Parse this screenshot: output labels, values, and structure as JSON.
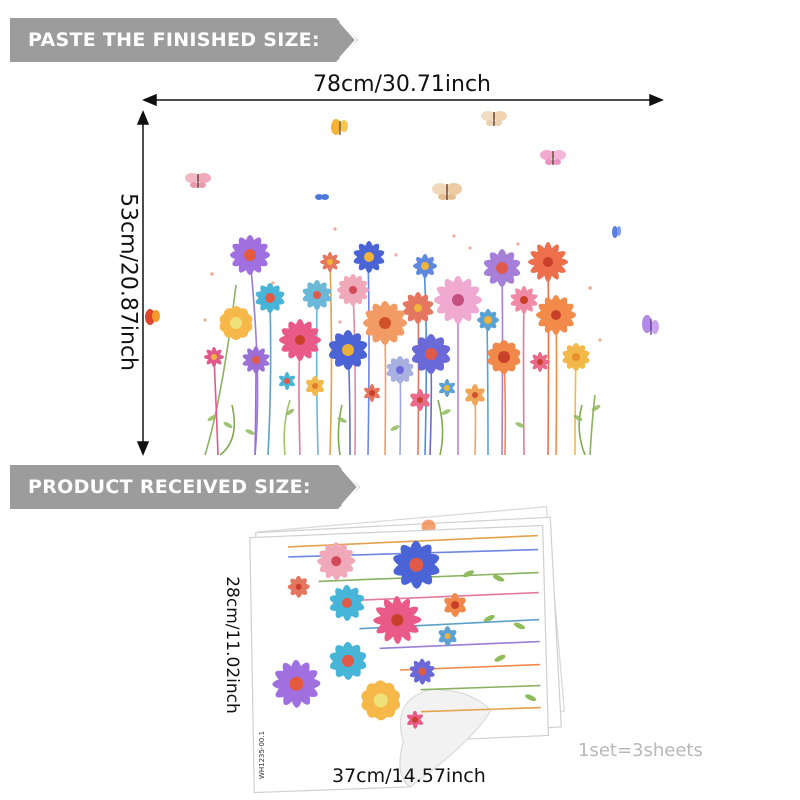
{
  "banners": {
    "finished_label": "PASTE THE FINISHED SIZE:",
    "received_label": "PRODUCT RECEIVED SIZE:"
  },
  "finished_size": {
    "width_label": "78cm/30.71inch",
    "height_label": "53cm/20.87inch"
  },
  "received_size": {
    "height_label": "28cm/11.02inch",
    "width_label": "37cm/14.57inch",
    "set_note": "1set=3sheets",
    "sheet_code": "WH1235-00.1"
  },
  "colors": {
    "banner": "#9c9c9c",
    "text": "#111111",
    "note": "#b8b8b8"
  }
}
